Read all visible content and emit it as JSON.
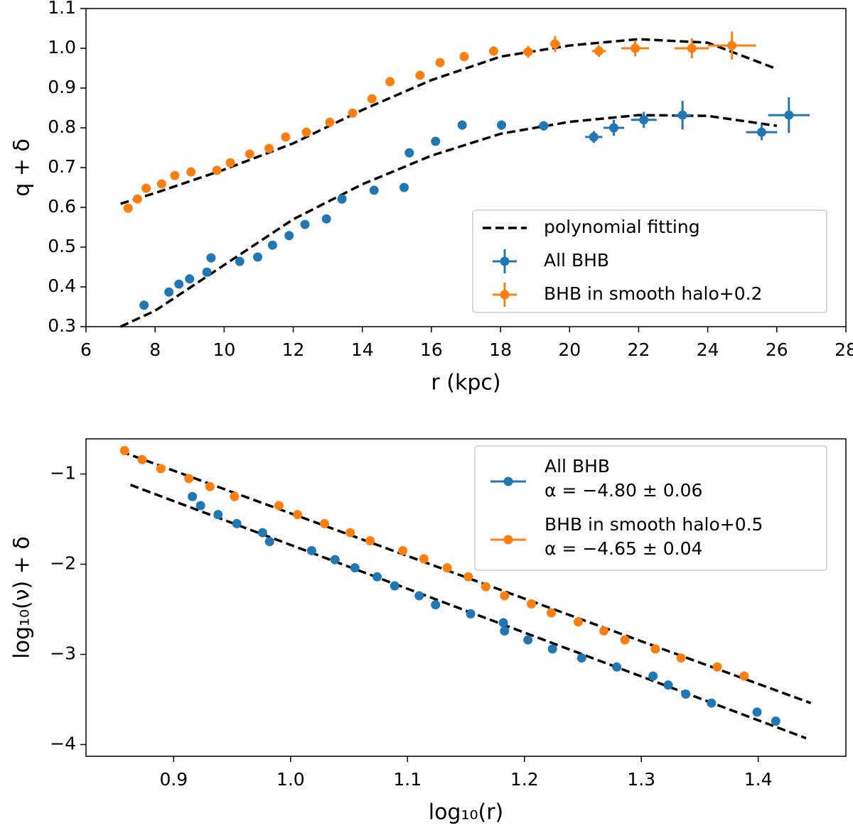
{
  "chart_data": [
    {
      "type": "errorbar",
      "xlabel": "r (kpc)",
      "ylabel": "q + δ",
      "xlim": [
        6,
        28
      ],
      "ylim": [
        0.3,
        1.1
      ],
      "xticks": [
        6,
        8,
        10,
        12,
        14,
        16,
        18,
        20,
        22,
        24,
        26,
        28
      ],
      "yticks": [
        0.3,
        0.4,
        0.5,
        0.6,
        0.7,
        0.8,
        0.9,
        {
          "value": 1,
          "label": "1.0"
        },
        1.1
      ],
      "legend": "lower right",
      "fit_name": "polynomial fitting",
      "fit_color": "#000000",
      "series": [
        {
          "name": "All BHB",
          "color": "#1f77b4",
          "x": [
            7.68,
            8.4,
            8.69,
            9.0,
            9.5,
            9.62,
            10.45,
            10.97,
            11.4,
            11.88,
            12.34,
            12.96,
            13.41,
            14.34,
            15.21,
            15.36,
            16.12,
            16.89,
            18.03,
            19.25,
            20.7,
            21.28,
            22.15,
            23.27,
            25.56,
            26.35
          ],
          "values": [
            0.354,
            0.387,
            0.407,
            0.42,
            0.437,
            0.473,
            0.464,
            0.475,
            0.505,
            0.529,
            0.557,
            0.571,
            0.621,
            0.643,
            0.65,
            0.737,
            0.766,
            0.807,
            0.807,
            0.805,
            0.777,
            0.8,
            0.82,
            0.832,
            0.789,
            0.832
          ],
          "xerr": [
            0.05,
            0.05,
            0.05,
            0.05,
            0.05,
            0.05,
            0.05,
            0.05,
            0.05,
            0.05,
            0.05,
            0.05,
            0.05,
            0.05,
            0.05,
            0.05,
            0.05,
            0.08,
            0.1,
            0.15,
            0.25,
            0.3,
            0.37,
            0.25,
            0.45,
            0.6
          ],
          "yerr": [
            0.008,
            0.008,
            0.008,
            0.008,
            0.008,
            0.008,
            0.008,
            0.008,
            0.008,
            0.008,
            0.008,
            0.008,
            0.008,
            0.008,
            0.008,
            0.008,
            0.01,
            0.012,
            0.012,
            0.012,
            0.015,
            0.02,
            0.02,
            0.036,
            0.02,
            0.045
          ],
          "fit": {
            "x": [
              7,
              8,
              10,
              12,
              14,
              16,
              18,
              20,
              22,
              24,
              26
            ],
            "values": [
              0.3,
              0.34,
              0.455,
              0.57,
              0.658,
              0.73,
              0.785,
              0.815,
              0.832,
              0.83,
              0.805
            ]
          }
        },
        {
          "name": "BHB in smooth halo+0.2",
          "color": "#ff7f0e",
          "x": [
            7.22,
            7.49,
            7.74,
            8.19,
            8.57,
            9.04,
            9.79,
            10.18,
            10.74,
            11.3,
            11.78,
            12.38,
            13.06,
            13.72,
            14.28,
            14.8,
            15.67,
            16.25,
            16.95,
            17.8,
            18.8,
            19.58,
            20.85,
            21.9,
            23.54,
            24.7
          ],
          "values": [
            0.598,
            0.621,
            0.648,
            0.659,
            0.68,
            0.689,
            0.693,
            0.712,
            0.734,
            0.748,
            0.777,
            0.789,
            0.814,
            0.837,
            0.873,
            0.916,
            0.932,
            0.964,
            0.979,
            0.993,
            0.991,
            1.011,
            0.993,
            1.0,
            1.0,
            1.007
          ],
          "xerr": [
            0.05,
            0.05,
            0.05,
            0.05,
            0.05,
            0.05,
            0.05,
            0.05,
            0.05,
            0.05,
            0.05,
            0.05,
            0.05,
            0.05,
            0.05,
            0.05,
            0.05,
            0.05,
            0.08,
            0.1,
            0.15,
            0.15,
            0.2,
            0.4,
            0.5,
            0.7
          ],
          "yerr": [
            0.008,
            0.008,
            0.008,
            0.008,
            0.008,
            0.008,
            0.008,
            0.008,
            0.008,
            0.008,
            0.008,
            0.008,
            0.008,
            0.008,
            0.008,
            0.008,
            0.008,
            0.01,
            0.012,
            0.012,
            0.015,
            0.02,
            0.015,
            0.02,
            0.025,
            0.035
          ],
          "fit": {
            "x": [
              7,
              8,
              10,
              12,
              14,
              16,
              18,
              20,
              22,
              24,
              26
            ],
            "values": [
              0.609,
              0.636,
              0.695,
              0.761,
              0.845,
              0.92,
              0.979,
              1.007,
              1.023,
              1.014,
              0.948
            ]
          }
        }
      ]
    },
    {
      "type": "scatter",
      "xlabel": "log₁₀(r)",
      "ylabel": "log₁₀(ν) + δ",
      "xlim": [
        0.825,
        1.475
      ],
      "ylim": [
        -4.13,
        -0.61
      ],
      "xticks": [
        0.9,
        {
          "value": 1,
          "label": "1.0"
        },
        1.1,
        1.2,
        1.3,
        1.4
      ],
      "yticks": [
        {
          "value": -1,
          "label": "−1"
        },
        {
          "value": -2,
          "label": "−2"
        },
        {
          "value": -3,
          "label": "−3"
        },
        {
          "value": -4,
          "label": "−4"
        }
      ],
      "legend": "upper right",
      "fit_color": "#000000",
      "series": [
        {
          "name": "All BHB",
          "fit_label": "α = −4.80 ± 0.06",
          "color": "#1f77b4",
          "x": [
            0.916,
            0.923,
            0.938,
            0.954,
            0.976,
            0.982,
            1.018,
            1.038,
            1.055,
            1.074,
            1.089,
            1.11,
            1.124,
            1.154,
            1.182,
            1.183,
            1.203,
            1.224,
            1.249,
            1.279,
            1.31,
            1.323,
            1.338,
            1.36,
            1.399,
            1.415
          ],
          "values": [
            -1.25,
            -1.35,
            -1.45,
            -1.55,
            -1.65,
            -1.75,
            -1.85,
            -1.95,
            -2.04,
            -2.14,
            -2.24,
            -2.35,
            -2.45,
            -2.55,
            -2.65,
            -2.74,
            -2.84,
            -2.94,
            -3.04,
            -3.14,
            -3.24,
            -3.34,
            -3.44,
            -3.54,
            -3.64,
            -3.74
          ],
          "fit": {
            "x": [
              0.863,
              1.441
            ],
            "values": [
              -1.12,
              -3.93
            ]
          }
        },
        {
          "name": "BHB in smooth halo+0.5",
          "fit_label": "α = −4.65 ± 0.04",
          "color": "#ff7f0e",
          "x": [
            0.858,
            0.873,
            0.889,
            0.913,
            0.931,
            0.952,
            0.99,
            1.006,
            1.029,
            1.051,
            1.068,
            1.096,
            1.114,
            1.134,
            1.152,
            1.167,
            1.183,
            1.206,
            1.223,
            1.246,
            1.268,
            1.286,
            1.312,
            1.334,
            1.365,
            1.388
          ],
          "values": [
            -0.74,
            -0.84,
            -0.94,
            -1.05,
            -1.14,
            -1.25,
            -1.35,
            -1.45,
            -1.55,
            -1.65,
            -1.74,
            -1.85,
            -1.94,
            -2.04,
            -2.14,
            -2.25,
            -2.35,
            -2.44,
            -2.54,
            -2.64,
            -2.74,
            -2.84,
            -2.94,
            -3.04,
            -3.14,
            -3.24
          ],
          "fit": {
            "x": [
              0.855,
              1.445
            ],
            "values": [
              -0.75,
              -3.54
            ]
          }
        }
      ]
    }
  ]
}
